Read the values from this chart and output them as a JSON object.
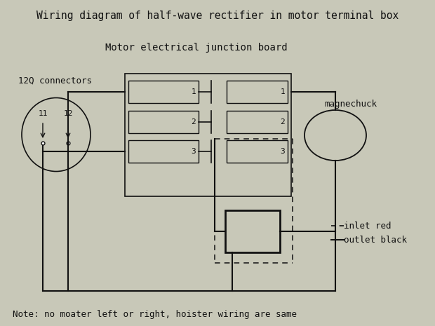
{
  "title": "Wiring diagram of half-wave rectifier in motor terminal box",
  "subtitle": "Motor electrical junction board",
  "note": "Note: no moater left or right, hoister wiring are same",
  "bg_color": "#c8c8b8",
  "line_color": "#111111",
  "text_color": "#111111",
  "title_fontsize": 10.5,
  "subtitle_fontsize": 10,
  "label_fontsize": 9,
  "note_fontsize": 9,
  "connector_label": "12Q connectors",
  "magnechuck_label": "magnechuck",
  "inlet_label": "inlet red",
  "outlet_label": "outlet black"
}
